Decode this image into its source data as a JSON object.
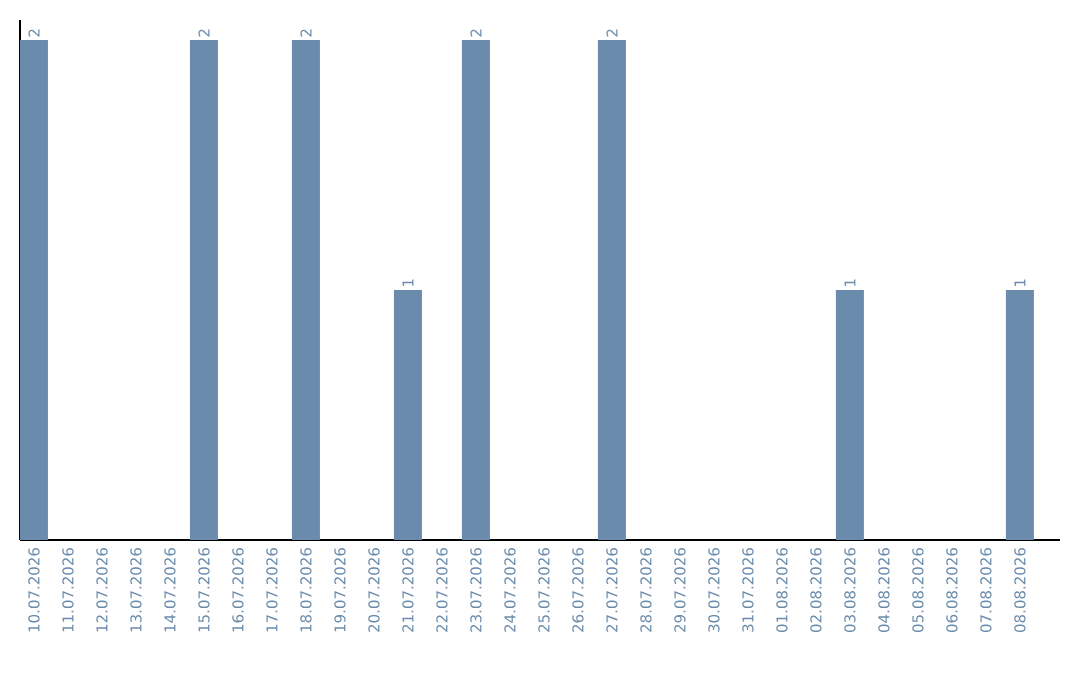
{
  "chart_data": {
    "type": "bar",
    "color": "#6a8bab",
    "categories": [
      "10.07.2026",
      "11.07.2026",
      "12.07.2026",
      "13.07.2026",
      "14.07.2026",
      "15.07.2026",
      "16.07.2026",
      "17.07.2026",
      "18.07.2026",
      "19.07.2026",
      "20.07.2026",
      "21.07.2026",
      "22.07.2026",
      "23.07.2026",
      "24.07.2026",
      "25.07.2026",
      "26.07.2026",
      "27.07.2026",
      "28.07.2026",
      "29.07.2026",
      "30.07.2026",
      "31.07.2026",
      "01.08.2026",
      "02.08.2026",
      "03.08.2026",
      "04.08.2026",
      "05.08.2026",
      "06.08.2026",
      "07.08.2026",
      "08.08.2026"
    ],
    "values": [
      2,
      0,
      0,
      0,
      0,
      2,
      0,
      0,
      2,
      0,
      0,
      1,
      0,
      2,
      0,
      0,
      0,
      2,
      0,
      0,
      0,
      0,
      0,
      0,
      1,
      0,
      0,
      0,
      0,
      1
    ],
    "value_labels": [
      "2",
      null,
      null,
      null,
      null,
      "2",
      null,
      null,
      "2",
      null,
      null,
      "1",
      null,
      "2",
      null,
      null,
      null,
      "2",
      null,
      null,
      null,
      null,
      null,
      null,
      "1",
      null,
      null,
      null,
      null,
      "1"
    ]
  }
}
